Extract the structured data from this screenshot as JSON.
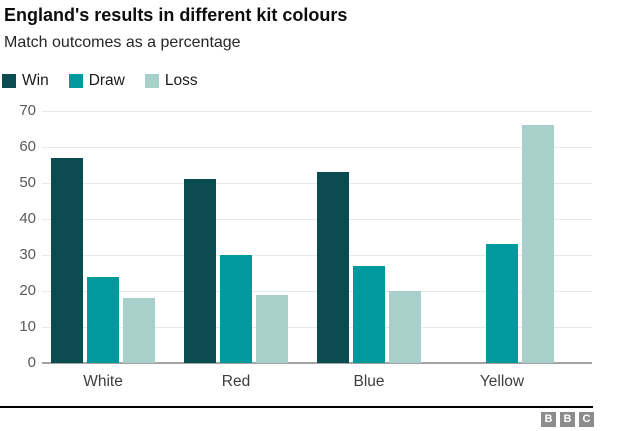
{
  "chart_data": {
    "type": "bar",
    "title": "England's results in different kit colours",
    "subtitle": "Match outcomes as a percentage",
    "categories": [
      "White",
      "Red",
      "Blue",
      "Yellow"
    ],
    "series": [
      {
        "name": "Win",
        "color": "#0b4c51",
        "values": [
          57,
          51,
          53,
          0
        ]
      },
      {
        "name": "Draw",
        "color": "#009a9e",
        "values": [
          24,
          30,
          27,
          33
        ]
      },
      {
        "name": "Loss",
        "color": "#a8d0cb",
        "values": [
          18,
          19,
          20,
          66
        ]
      }
    ],
    "xlabel": "",
    "ylabel": "",
    "ylim": [
      0,
      70
    ],
    "yticks": [
      0,
      10,
      20,
      30,
      40,
      50,
      60,
      70
    ],
    "grid": true,
    "legend_position": "top-left"
  },
  "footer": {
    "logo_letters": [
      "B",
      "B",
      "C"
    ]
  },
  "colors": {
    "gridline": "#e8e8e8",
    "axis_baseline": "#a3a3a3",
    "tick_text": "#595959",
    "category_text": "#3d3d3d",
    "title_text": "#0d0d0d",
    "footer_divider": "#000000",
    "bbc_logo_gray": "#8c8c8c"
  }
}
